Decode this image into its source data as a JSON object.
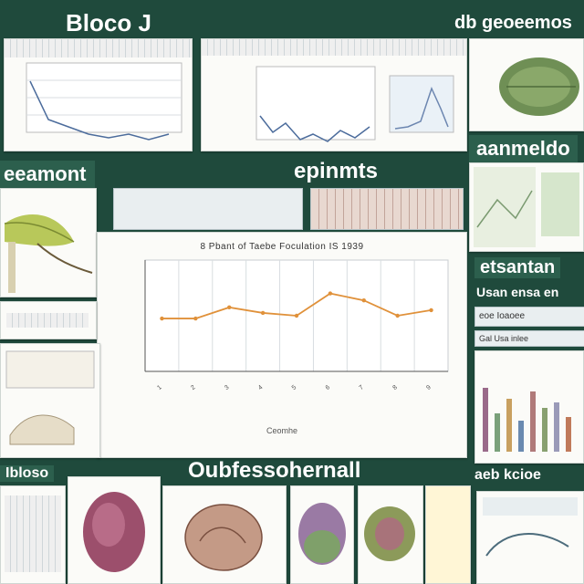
{
  "header": {
    "left_title": "Bloco J",
    "right_title": "db geoeemos"
  },
  "sections": {
    "left_mid_title": "eeamont",
    "center_title": "epinmts",
    "right_mid_title": "aanmeldo",
    "right_lower_title": "etsantan",
    "right_lower_subtitle": "Usan ensa en",
    "bottom_title": "Oubfessohernall",
    "bottom_left_title": "Ibloso",
    "bottom_right_title": "aeb kcioe",
    "right_side_strip_1": "eoe Ioaoee",
    "right_side_strip_2": "Gal Usa inlee"
  },
  "main_chart": {
    "title": "8 Pbant of Taebe Foculation IS 1939",
    "xlabel": "Ceomhe"
  },
  "chart_data": [
    {
      "type": "line",
      "title": "8 Pbant of Taebe Foculation IS 1939",
      "xlabel": "Ceomhe",
      "ylabel": "",
      "x": [
        "1",
        "2",
        "3",
        "4",
        "5",
        "6",
        "7",
        "8",
        "9"
      ],
      "values": [
        38,
        38,
        46,
        42,
        40,
        56,
        51,
        40,
        44
      ],
      "ylim": [
        0,
        80
      ],
      "series_color": "#e0913a",
      "grid": true
    }
  ],
  "colors": {
    "background": "#1f4a3c",
    "accent": "#e0913a",
    "panel": "#fbfbf8"
  }
}
